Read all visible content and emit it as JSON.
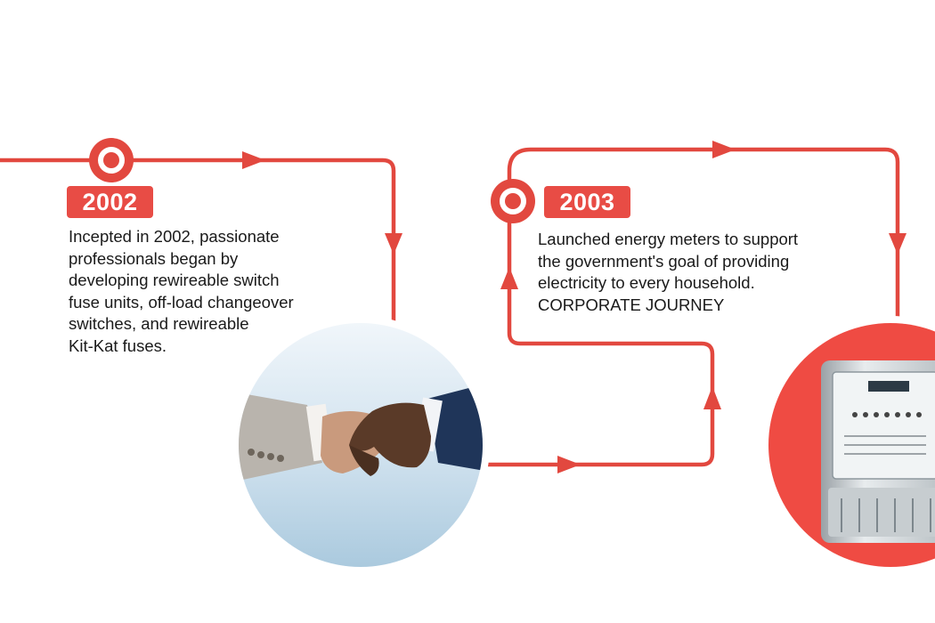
{
  "colors": {
    "accent": "#e84c45",
    "line": "#e2483f",
    "text": "#1a1a1a"
  },
  "milestones": [
    {
      "year": "2002",
      "lines": [
        "Incepted in 2002, passionate",
        "professionals began by",
        "developing rewireable switch",
        "fuse units, off-load changeover",
        "switches, and rewireable",
        "Kit-Kat fuses."
      ],
      "image": "handshake"
    },
    {
      "year": "2003",
      "lines": [
        "Launched energy meters to support",
        "the government's goal of providing",
        "electricity to every household.",
        "CORPORATE JOURNEY"
      ],
      "image": "energy-meter"
    }
  ]
}
